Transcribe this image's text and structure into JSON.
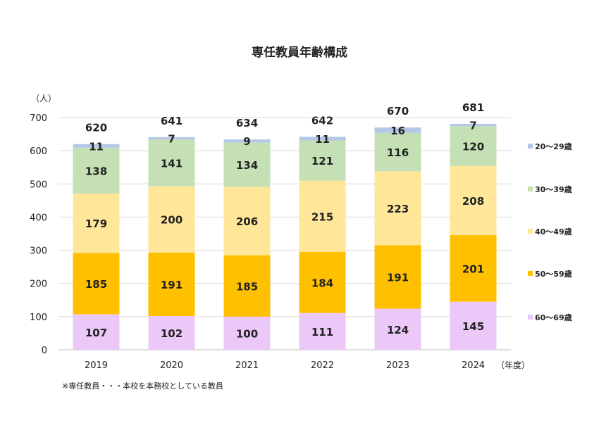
{
  "chart_data": {
    "type": "bar",
    "stacked": true,
    "title": "専任教員年齢構成",
    "ylabel": "（人）",
    "xlabel": "（年度）",
    "ylim": [
      0,
      700
    ],
    "yticks": [
      0,
      100,
      200,
      300,
      400,
      500,
      600,
      700
    ],
    "grid": true,
    "legend_position": "right",
    "categories": [
      "2019",
      "2020",
      "2021",
      "2022",
      "2023",
      "2024"
    ],
    "series": [
      {
        "name": "60～69歳",
        "color": "#EBC8F7",
        "values": [
          107,
          102,
          100,
          111,
          124,
          145
        ]
      },
      {
        "name": "50～59歳",
        "color": "#FFC000",
        "values": [
          185,
          191,
          185,
          184,
          191,
          201
        ]
      },
      {
        "name": "40～49歳",
        "color": "#FFE699",
        "values": [
          179,
          200,
          206,
          215,
          223,
          208
        ]
      },
      {
        "name": "30～39歳",
        "color": "#C5E0B4",
        "values": [
          138,
          141,
          134,
          121,
          116,
          120
        ]
      },
      {
        "name": "20～29歳",
        "color": "#B4C7E7",
        "values": [
          11,
          7,
          9,
          11,
          16,
          7
        ]
      }
    ],
    "totals": [
      620,
      641,
      634,
      642,
      670,
      681
    ],
    "footnote": "※専任教員・・・本校を本務校としている教員"
  }
}
